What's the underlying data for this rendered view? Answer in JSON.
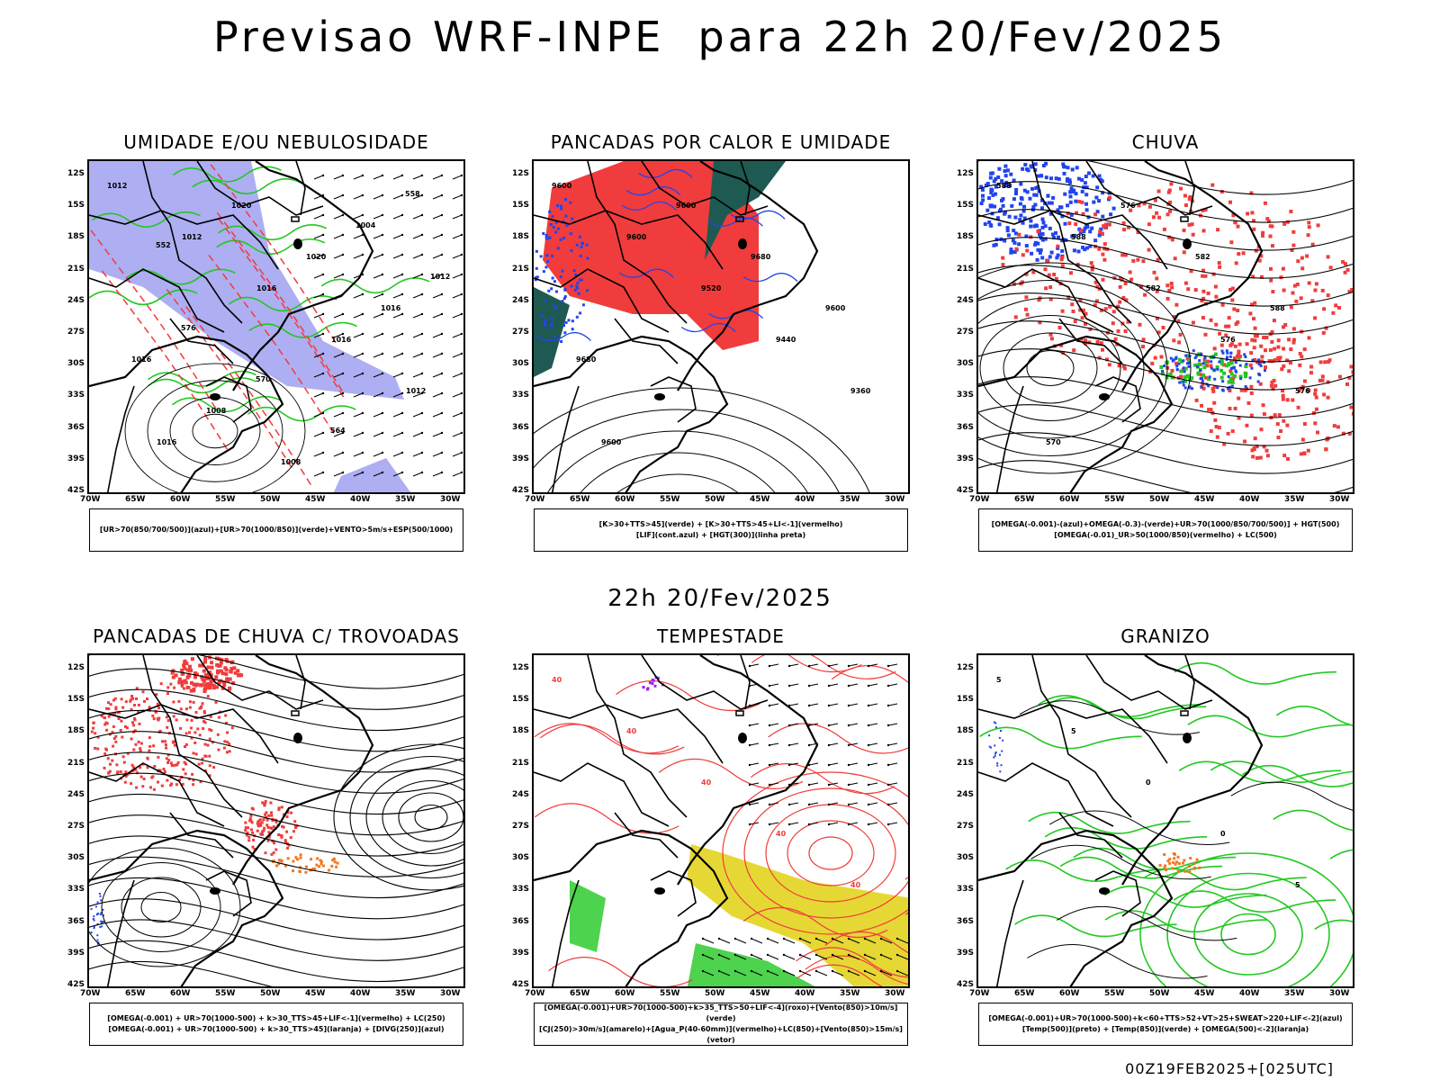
{
  "header": {
    "title": "Previsao WRF-INPE  para 22h 20/Fev/2025",
    "mid_time": "22h 20/Fev/2025",
    "footer": "00Z19FEB2025+[025UTC]"
  },
  "axes": {
    "lat_labels": [
      "12S",
      "15S",
      "18S",
      "21S",
      "24S",
      "27S",
      "30S",
      "33S",
      "36S",
      "39S",
      "42S"
    ],
    "lon_labels": [
      "70W",
      "65W",
      "60W",
      "55W",
      "50W",
      "45W",
      "40W",
      "35W",
      "30W"
    ]
  },
  "panels": [
    {
      "title": "UMIDADE E/OU NEBULOSIDADE",
      "legend": [
        "[UR>70(850/700/500)](azul)+[UR>70(1000/850)](verde)+VENTO>5m/s+ESP(500/1000)"
      ],
      "labels": [
        "1012",
        "1012",
        "1016",
        "1016",
        "1012",
        "1016",
        "1020",
        "1020",
        "1016",
        "1016",
        "1008",
        "1008",
        "1004",
        "1012",
        "576",
        "570",
        "564",
        "558",
        "552"
      ]
    },
    {
      "title": "PANCADAS POR CALOR E UMIDADE",
      "legend": [
        "[K>30+TTS>45](verde) + [K>30+TTS>45+LI<-1](vermelho)",
        "[LIF](cont.azul) + [HGT(300)](linha preta)"
      ],
      "labels": [
        "9600",
        "9600",
        "9520",
        "9440",
        "9360",
        "9600",
        "9600",
        "9680",
        "9600",
        "9680"
      ]
    },
    {
      "title": "CHUVA",
      "legend": [
        "[OMEGA(-0.001)-(azul)+OMEGA(-0.3)-(verde)+UR>70(1000/850/700/500)] + HGT(500)",
        "[OMEGA(-0.01)_UR>50(1000/850)(vermelho) + LC(500)"
      ],
      "labels": [
        "588",
        "588",
        "582",
        "576",
        "576",
        "570",
        "576",
        "582",
        "588"
      ]
    },
    {
      "title": "PANCADAS DE CHUVA C/ TROVOADAS",
      "legend": [
        "[OMEGA(-0.001) + UR>70(1000-500) + k>30_TTS>45+LIF<-1](vermelho) + LC(250)",
        "[OMEGA(-0.001) + UR>70(1000-500) + k>30_TTS>45](laranja) + [DIVG(250)](azul)"
      ],
      "labels": []
    },
    {
      "title": "TEMPESTADE",
      "legend": [
        "[OMEGA(-0.001)+UR>70(1000-500)+k>35_TTS>50+LIF<-4](roxo)+[Vento(850)>10m/s](verde)",
        "[CJ(250)>30m/s](amarelo)+[Agua_P(40-60mm)](vermelho)+LC(850)+[Vento(850)>15m/s](vetor)"
      ],
      "labels": [
        "40",
        "40",
        "40",
        "40",
        "40"
      ]
    },
    {
      "title": "GRANIZO",
      "legend": [
        "[OMEGA(-0.001)+UR>70(1000-500)+k<60+TTS>52+VT>25+SWEAT>220+LIF<-2](azul)",
        "[Temp(500)](preto) + [Temp(850)](verde) + [OMEGA(500)<-2](laranja)"
      ],
      "labels": [
        "5",
        "5",
        "0",
        "0",
        "5"
      ]
    }
  ],
  "colors": {
    "red": "#f03c3c",
    "green": "#22c822",
    "blue": "#2244ee",
    "lavender": "#9a9af0",
    "darkteal": "#1e5a52",
    "yellow": "#e6d834",
    "orange": "#f07820",
    "purple": "#a020f0"
  }
}
